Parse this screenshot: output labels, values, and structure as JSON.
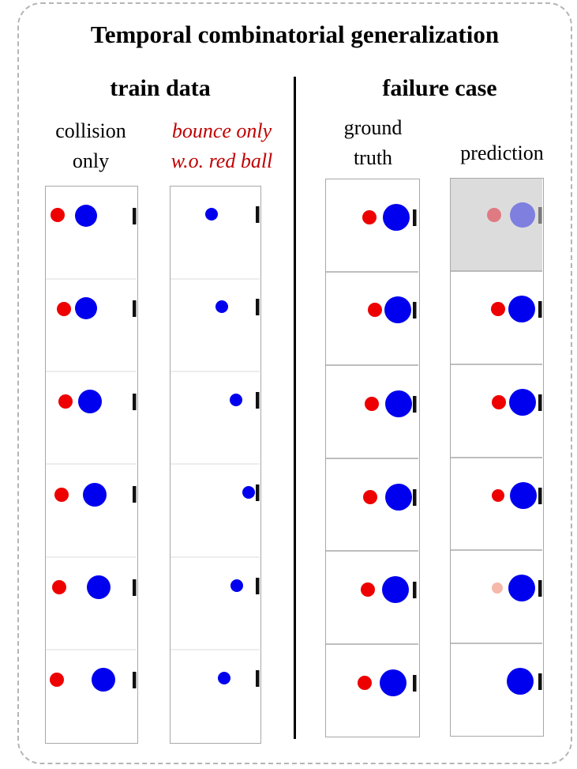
{
  "title": "Temporal combinatorial generalization",
  "sections": {
    "train": "train data",
    "failure": "failure case"
  },
  "columns": [
    {
      "id": "collision",
      "label_lines": [
        "collision",
        "only"
      ]
    },
    {
      "id": "bounce",
      "label_lines": [
        "bounce only",
        "w.o. red ball"
      ]
    },
    {
      "id": "ground_truth",
      "label_lines": [
        "ground",
        "truth"
      ]
    },
    {
      "id": "prediction",
      "label_lines": [
        "prediction"
      ]
    }
  ],
  "colors": {
    "red_ball": "#ee0000",
    "blue_ball": "#0000ee",
    "wall": "#111111",
    "strip_border": "#a8a8a8",
    "dashed_frame": "#b5b5b5",
    "faded_frame_bg": "#dddcdd"
  }
}
